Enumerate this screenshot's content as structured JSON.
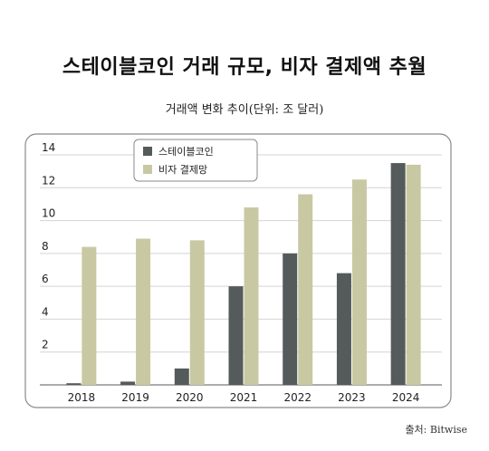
{
  "header": {
    "title": "스테이블코인 거래 규모, 비자 결제액 추월",
    "subtitle": "거래액 변화 추이(단위: 조 달러)"
  },
  "footer": {
    "source": "출처: Bitwise"
  },
  "colors": {
    "stablecoin": "#545b5a",
    "visa": "#c8c9a3",
    "frame": "#8a8a8a",
    "grid": "#d4d4d4"
  },
  "chart_data": {
    "type": "bar",
    "categories": [
      "2018",
      "2019",
      "2020",
      "2021",
      "2022",
      "2023",
      "2024"
    ],
    "series": [
      {
        "name": "스테이블코인",
        "values": [
          0.1,
          0.2,
          1.0,
          6.0,
          8.0,
          6.8,
          13.5
        ]
      },
      {
        "name": "비자 결제망",
        "values": [
          8.4,
          8.9,
          8.8,
          10.8,
          11.6,
          12.5,
          13.4
        ]
      }
    ],
    "ylim": [
      0,
      14
    ],
    "yticks": [
      2,
      4,
      6,
      8,
      10,
      12,
      14
    ],
    "grid": true,
    "legend": "top-left"
  }
}
